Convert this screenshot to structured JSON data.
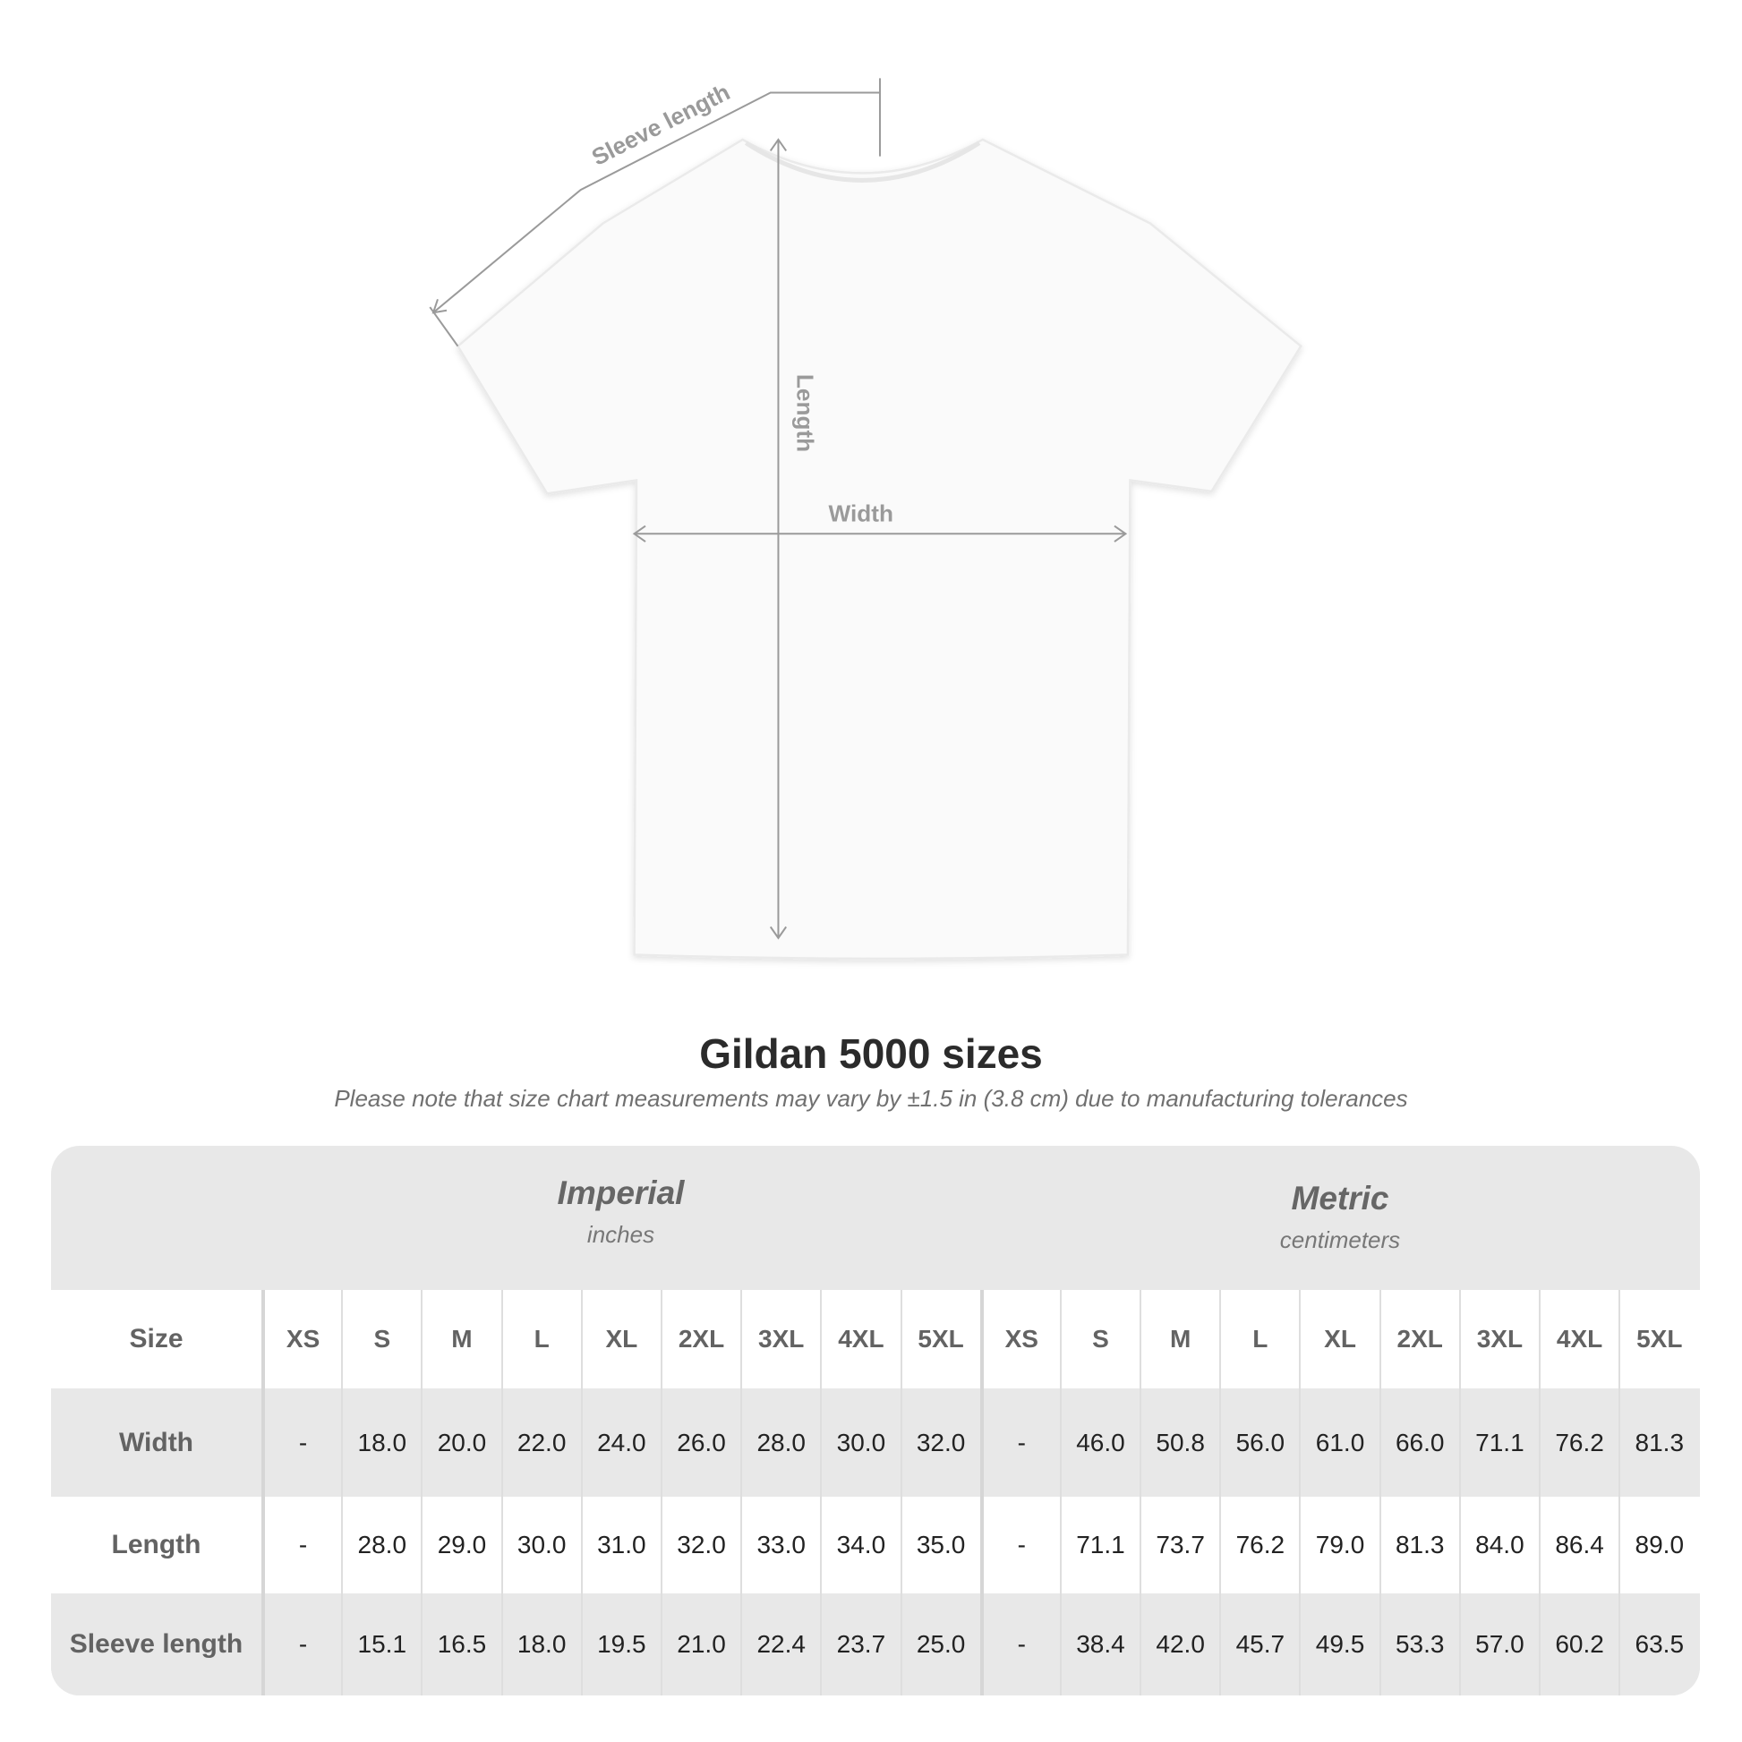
{
  "diagram": {
    "labels": {
      "sleeve": "Sleeve length",
      "length": "Length",
      "width": "Width"
    }
  },
  "title": "Gildan 5000 sizes",
  "note": "Please note that size chart measurements may vary by ±1.5 in (3.8 cm) due to manufacturing tolerances",
  "table": {
    "imperial": {
      "title": "Imperial",
      "unit": "inches"
    },
    "metric": {
      "title": "Metric",
      "unit": "centimeters"
    },
    "size_label": "Size",
    "sizes": [
      "XS",
      "S",
      "M",
      "L",
      "XL",
      "2XL",
      "3XL",
      "4XL",
      "5XL"
    ],
    "rows": [
      {
        "label": "Width",
        "imperial": [
          "-",
          "18.0",
          "20.0",
          "22.0",
          "24.0",
          "26.0",
          "28.0",
          "30.0",
          "32.0"
        ],
        "metric": [
          "-",
          "46.0",
          "50.8",
          "56.0",
          "61.0",
          "66.0",
          "71.1",
          "76.2",
          "81.3"
        ]
      },
      {
        "label": "Length",
        "imperial": [
          "-",
          "28.0",
          "29.0",
          "30.0",
          "31.0",
          "32.0",
          "33.0",
          "34.0",
          "35.0"
        ],
        "metric": [
          "-",
          "71.1",
          "73.7",
          "76.2",
          "79.0",
          "81.3",
          "84.0",
          "86.4",
          "89.0"
        ]
      },
      {
        "label": "Sleeve length",
        "imperial": [
          "-",
          "15.1",
          "16.5",
          "18.0",
          "19.5",
          "21.0",
          "22.4",
          "23.7",
          "25.0"
        ],
        "metric": [
          "-",
          "38.4",
          "42.0",
          "45.7",
          "49.5",
          "53.3",
          "57.0",
          "60.2",
          "63.5"
        ]
      }
    ]
  },
  "colors": {
    "table_bg": "#e8e8e8",
    "header_text": "#636363",
    "line": "#999999"
  }
}
